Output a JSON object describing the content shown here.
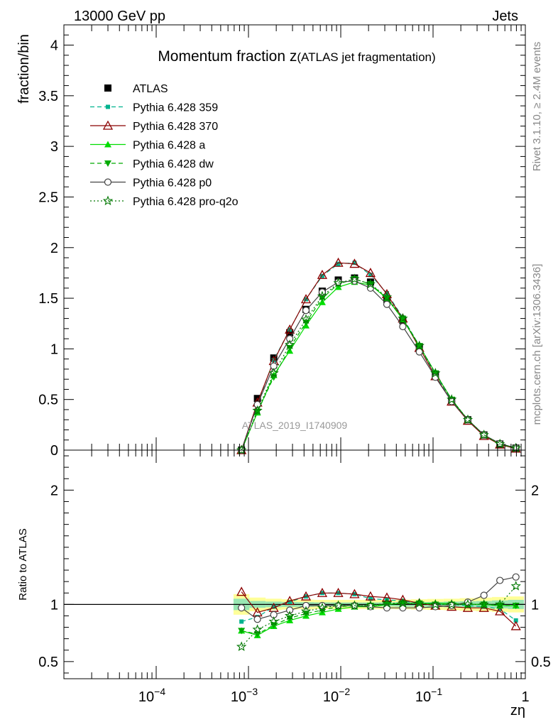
{
  "header": {
    "energy_label": "13000 GeV pp",
    "category_label": "Jets"
  },
  "side_labels": {
    "rivet": "Rivet 3.1.10, ≥ 2.4M events",
    "mcplots": "mcplots.cern.ch [arXiv:1306.3436]"
  },
  "chart_data": [
    {
      "type": "line",
      "panel": "main",
      "title_main": "Momentum fraction z",
      "title_sub": "(ATLAS jet fragmentation)",
      "ylabel": "fraction/bin",
      "xlabel": "",
      "x_scale": "log",
      "xlim": [
        1e-05,
        1
      ],
      "ylim": [
        0,
        4.2
      ],
      "yticks": [
        0,
        0.5,
        1,
        1.5,
        2,
        2.5,
        3,
        3.5,
        4
      ],
      "ytick_labels": [
        "0",
        "0.5",
        "1",
        "1.5",
        "2",
        "2.5",
        "3",
        "3.5",
        "4"
      ],
      "watermark": "ATLAS_2019_I1740909",
      "legend_position": "top-left",
      "x": [
        0.00084,
        0.00125,
        0.00188,
        0.0028,
        0.0042,
        0.0063,
        0.0094,
        0.0141,
        0.021,
        0.0316,
        0.047,
        0.071,
        0.106,
        0.159,
        0.238,
        0.356,
        0.53,
        0.79
      ],
      "series": [
        {
          "name": "ATLAS",
          "color": "#000000",
          "marker": "square-filled",
          "line": "none",
          "values": [
            0.0,
            0.51,
            0.91,
            1.16,
            1.39,
            1.57,
            1.68,
            1.7,
            1.66,
            1.49,
            1.28,
            1.02,
            0.75,
            0.49,
            0.3,
            0.15,
            0.06,
            0.02
          ]
        },
        {
          "name": "Pythia 6.428 359",
          "color": "#00b38f",
          "marker": "square-small",
          "line": "dashed",
          "values": [
            0.0,
            0.45,
            0.89,
            1.19,
            1.49,
            1.72,
            1.84,
            1.85,
            1.73,
            1.55,
            1.31,
            1.03,
            0.74,
            0.49,
            0.29,
            0.14,
            0.06,
            0.02
          ]
        },
        {
          "name": "Pythia 6.428 370",
          "color": "#8b0000",
          "marker": "triangle-open",
          "line": "solid",
          "values": [
            0.0,
            0.47,
            0.88,
            1.19,
            1.49,
            1.73,
            1.85,
            1.84,
            1.75,
            1.54,
            1.3,
            1.01,
            0.73,
            0.48,
            0.29,
            0.14,
            0.055,
            0.015
          ]
        },
        {
          "name": "Pythia 6.428 a",
          "color": "#00dd00",
          "marker": "triangle-filled",
          "line": "solid",
          "values": [
            0.0,
            0.37,
            0.74,
            0.98,
            1.23,
            1.46,
            1.61,
            1.66,
            1.63,
            1.5,
            1.29,
            1.03,
            0.76,
            0.5,
            0.3,
            0.15,
            0.06,
            0.02
          ]
        },
        {
          "name": "Pythia 6.428 dw",
          "color": "#00aa00",
          "marker": "triangle-down-filled",
          "line": "dashed",
          "values": [
            0.0,
            0.38,
            0.72,
            1.01,
            1.26,
            1.5,
            1.64,
            1.69,
            1.64,
            1.5,
            1.3,
            1.03,
            0.76,
            0.5,
            0.3,
            0.15,
            0.06,
            0.02
          ]
        },
        {
          "name": "Pythia 6.428 p0",
          "color": "#444444",
          "marker": "circle-open",
          "line": "solid",
          "values": [
            0.0,
            0.45,
            0.83,
            1.1,
            1.38,
            1.56,
            1.66,
            1.67,
            1.6,
            1.44,
            1.22,
            0.97,
            0.72,
            0.48,
            0.3,
            0.15,
            0.065,
            0.022
          ]
        },
        {
          "name": "Pythia 6.428 pro-q2o",
          "color": "#007700",
          "marker": "star-open",
          "line": "dotted",
          "values": [
            0.0,
            0.39,
            0.76,
            1.04,
            1.29,
            1.52,
            1.65,
            1.69,
            1.64,
            1.51,
            1.3,
            1.03,
            0.76,
            0.5,
            0.3,
            0.15,
            0.06,
            0.02
          ]
        }
      ]
    },
    {
      "type": "line",
      "panel": "ratio",
      "ylabel": "Ratio to ATLAS",
      "xlabel": "zη",
      "x_scale": "log",
      "xlim": [
        1e-05,
        1
      ],
      "ylim": [
        0.35,
        2.35
      ],
      "yticks": [
        0.5,
        1,
        2
      ],
      "ytick_labels": [
        "0.5",
        "1",
        "2"
      ],
      "xticks": [
        0.0001,
        0.001,
        0.01,
        0.1,
        1
      ],
      "xtick_labels": [
        "10^-4",
        "10^-3",
        "10^-2",
        "10^-1",
        "1"
      ],
      "x": [
        0.00084,
        0.00125,
        0.00188,
        0.0028,
        0.0042,
        0.0063,
        0.0094,
        0.0141,
        0.021,
        0.0316,
        0.047,
        0.071,
        0.106,
        0.159,
        0.238,
        0.356,
        0.53,
        0.79
      ],
      "band_inner_halfwidth": [
        0.05,
        0.03,
        0.025,
        0.022,
        0.02,
        0.018,
        0.017,
        0.017,
        0.017,
        0.018,
        0.02,
        0.02,
        0.022,
        0.025,
        0.028,
        0.03,
        0.035,
        0.04
      ],
      "band_outer_halfwidth": [
        0.09,
        0.06,
        0.05,
        0.045,
        0.042,
        0.04,
        0.04,
        0.04,
        0.04,
        0.04,
        0.042,
        0.045,
        0.048,
        0.05,
        0.055,
        0.06,
        0.065,
        0.07
      ],
      "series": [
        {
          "name": "Pythia 6.428 359",
          "color": "#00b38f",
          "marker": "square-small",
          "line": "dashed",
          "values": [
            0.85,
            0.89,
            0.98,
            1.02,
            1.07,
            1.1,
            1.1,
            1.09,
            1.05,
            1.04,
            1.03,
            1.01,
            1.0,
            1.0,
            0.99,
            0.98,
            0.96,
            0.86
          ]
        },
        {
          "name": "Pythia 6.428 370",
          "color": "#8b0000",
          "marker": "triangle-open",
          "line": "solid",
          "values": [
            1.11,
            0.93,
            0.97,
            1.03,
            1.07,
            1.1,
            1.1,
            1.09,
            1.07,
            1.06,
            1.04,
            1.01,
            0.99,
            0.98,
            0.97,
            0.97,
            0.94,
            0.81
          ]
        },
        {
          "name": "Pythia 6.428 a",
          "color": "#00dd00",
          "marker": "triangle-filled",
          "line": "solid",
          "values": [
            0.77,
            0.73,
            0.81,
            0.86,
            0.9,
            0.93,
            0.96,
            0.98,
            0.98,
            1.0,
            1.01,
            1.01,
            1.01,
            1.01,
            1.0,
            1.0,
            0.99,
            0.99
          ]
        },
        {
          "name": "Pythia 6.428 dw",
          "color": "#00aa00",
          "marker": "triangle-down-filled",
          "line": "dashed",
          "values": [
            0.77,
            0.74,
            0.82,
            0.88,
            0.92,
            0.95,
            0.98,
            0.99,
            0.99,
            1.0,
            1.01,
            1.01,
            1.0,
            1.0,
            1.0,
            1.0,
            0.99,
            0.99
          ]
        },
        {
          "name": "Pythia 6.428 p0",
          "color": "#444444",
          "marker": "circle-open",
          "line": "solid",
          "values": [
            0.97,
            0.87,
            0.91,
            0.95,
            0.99,
            0.99,
            0.99,
            0.99,
            0.98,
            0.97,
            0.97,
            0.97,
            0.98,
            0.99,
            1.02,
            1.08,
            1.21,
            1.24
          ]
        },
        {
          "name": "Pythia 6.428 pro-q2o",
          "color": "#007700",
          "marker": "star-open",
          "line": "dotted",
          "values": [
            0.63,
            0.78,
            0.85,
            0.9,
            0.94,
            0.97,
            0.99,
            0.99,
            0.99,
            1.01,
            1.01,
            1.01,
            1.0,
            1.0,
            1.0,
            1.0,
            1.0,
            1.16
          ]
        }
      ]
    }
  ]
}
